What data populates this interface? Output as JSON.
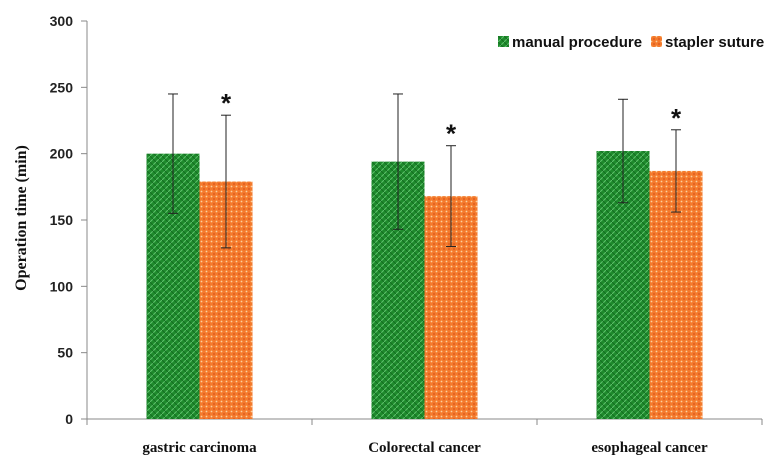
{
  "chart_data": {
    "type": "bar",
    "title": "",
    "xlabel": "",
    "ylabel": "Operation time (min)",
    "ylim": [
      0,
      300
    ],
    "yticks": [
      0,
      50,
      100,
      150,
      200,
      250,
      300
    ],
    "grid": false,
    "legend_position": "top-right",
    "categories": [
      "gastric carcinoma",
      "Colorectal cancer",
      "esophageal cancer"
    ],
    "series": [
      {
        "name": "manual procedure",
        "color": "#1e8a2c",
        "values": [
          200,
          194,
          202
        ],
        "error": [
          45,
          51,
          39
        ],
        "markers": [
          "",
          "",
          ""
        ]
      },
      {
        "name": "stapler suture",
        "color": "#f47a2c",
        "values": [
          179,
          168,
          187
        ],
        "error": [
          50,
          38,
          31
        ],
        "markers": [
          "*",
          "*",
          "*"
        ]
      }
    ]
  }
}
